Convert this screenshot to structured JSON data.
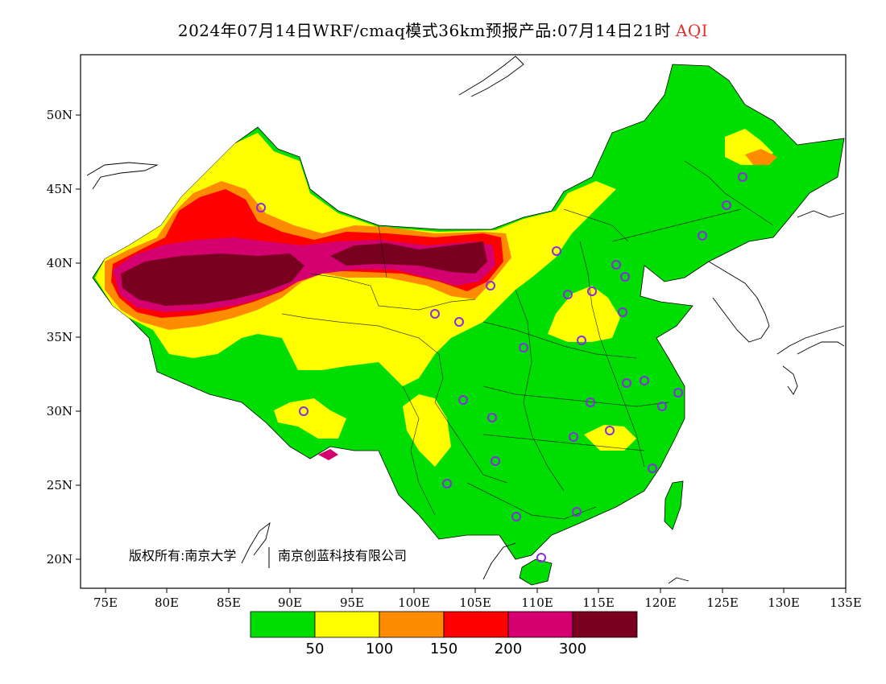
{
  "header": {
    "title": "2024年07月14日WRF/cmaq模式36km预报产品:07月14日21时",
    "variable": "AQI"
  },
  "axes": {
    "y_labels": [
      "50N",
      "45N",
      "40N",
      "35N",
      "30N",
      "25N",
      "20N"
    ],
    "x_labels": [
      "75E",
      "80E",
      "85E",
      "90E",
      "95E",
      "100E",
      "105E",
      "110E",
      "115E",
      "120E",
      "125E",
      "130E",
      "135E"
    ]
  },
  "copyright": {
    "left": "版权所有:南京大学",
    "right": "南京创蓝科技有限公司"
  },
  "legend": {
    "colors": [
      "#00dd00",
      "#ffff00",
      "#ff8c00",
      "#ff0000",
      "#d40070",
      "#7a0020"
    ],
    "labels": [
      "50",
      "100",
      "150",
      "200",
      "300"
    ]
  },
  "colors": {
    "good": "#00dd00",
    "moderate": "#ffff00",
    "usg": "#ff8c00",
    "unhealthy": "#ff0000",
    "very_unhealthy": "#d40070",
    "hazardous": "#7a0020",
    "station": "#8a2be2"
  }
}
